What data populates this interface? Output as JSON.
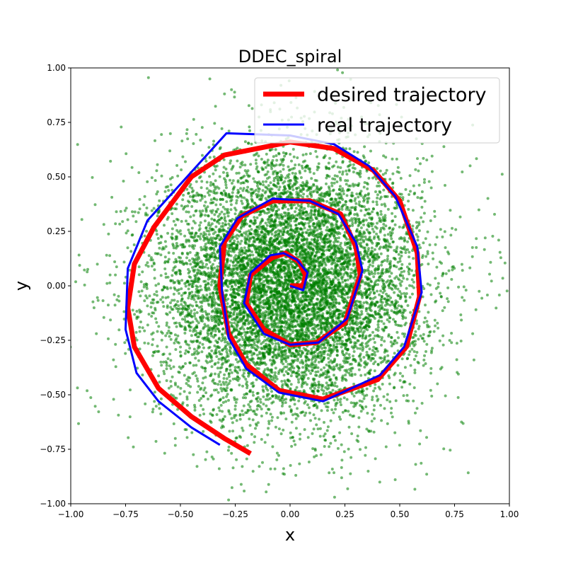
{
  "chart_data": {
    "type": "line",
    "title": "DDEC_spiral",
    "xlabel": "x",
    "ylabel": "y",
    "xlim": [
      -1.0,
      1.0
    ],
    "ylim": [
      -1.0,
      1.0
    ],
    "xticks": [
      "−1.00",
      "−0.75",
      "−0.50",
      "−0.25",
      "0.00",
      "0.25",
      "0.50",
      "0.75",
      "1.00"
    ],
    "yticks": [
      "−1.00",
      "−0.75",
      "−0.50",
      "−0.25",
      "0.00",
      "0.25",
      "0.50",
      "0.75",
      "1.00"
    ],
    "grid": false,
    "legend_position": "top-right",
    "scatter": {
      "color": "#008000",
      "distribution": "gaussian",
      "center": [
        0.0,
        0.0
      ],
      "std": 0.3,
      "count": 9000
    },
    "series": [
      {
        "name": "desired trajectory",
        "color": "#ff0000",
        "x": [
          0.0,
          0.06,
          0.07,
          0.04,
          -0.02,
          -0.08,
          -0.18,
          -0.2,
          -0.12,
          0.0,
          0.12,
          0.25,
          0.32,
          0.3,
          0.23,
          0.09,
          -0.08,
          -0.22,
          -0.3,
          -0.32,
          -0.28,
          -0.2,
          -0.05,
          0.15,
          0.4,
          0.53,
          0.59,
          0.58,
          0.5,
          0.38,
          0.2,
          0.0,
          -0.3,
          -0.45,
          -0.62,
          -0.71,
          -0.74,
          -0.71,
          -0.6,
          -0.45,
          -0.3,
          -0.18
        ],
        "y": [
          0.0,
          0.0,
          0.05,
          0.11,
          0.15,
          0.13,
          0.05,
          -0.08,
          -0.2,
          -0.27,
          -0.26,
          -0.17,
          0.05,
          0.18,
          0.33,
          0.39,
          0.39,
          0.32,
          0.2,
          0.0,
          -0.22,
          -0.36,
          -0.48,
          -0.52,
          -0.43,
          -0.28,
          -0.05,
          0.15,
          0.39,
          0.53,
          0.63,
          0.66,
          0.6,
          0.5,
          0.27,
          0.1,
          -0.1,
          -0.28,
          -0.47,
          -0.6,
          -0.7,
          -0.77
        ]
      },
      {
        "name": "real trajectory",
        "color": "#0000ff",
        "x": [
          0.0,
          0.06,
          0.08,
          0.03,
          -0.03,
          -0.09,
          -0.18,
          -0.21,
          -0.12,
          0.0,
          0.13,
          0.26,
          0.33,
          0.3,
          0.22,
          0.09,
          -0.08,
          -0.24,
          -0.32,
          -0.31,
          -0.28,
          -0.2,
          -0.05,
          0.15,
          0.41,
          0.52,
          0.6,
          0.58,
          0.48,
          0.36,
          0.2,
          0.0,
          -0.29,
          -0.47,
          -0.65,
          -0.74,
          -0.75,
          -0.7,
          -0.6,
          -0.45,
          -0.32
        ],
        "y": [
          0.0,
          -0.02,
          0.06,
          0.12,
          0.15,
          0.14,
          0.06,
          -0.08,
          -0.22,
          -0.27,
          -0.26,
          -0.15,
          0.07,
          0.2,
          0.33,
          0.39,
          0.4,
          0.31,
          0.18,
          -0.03,
          -0.24,
          -0.38,
          -0.49,
          -0.53,
          -0.41,
          -0.28,
          -0.03,
          0.18,
          0.41,
          0.55,
          0.65,
          0.69,
          0.7,
          0.5,
          0.3,
          0.08,
          -0.2,
          -0.4,
          -0.53,
          -0.65,
          -0.73
        ]
      }
    ]
  }
}
